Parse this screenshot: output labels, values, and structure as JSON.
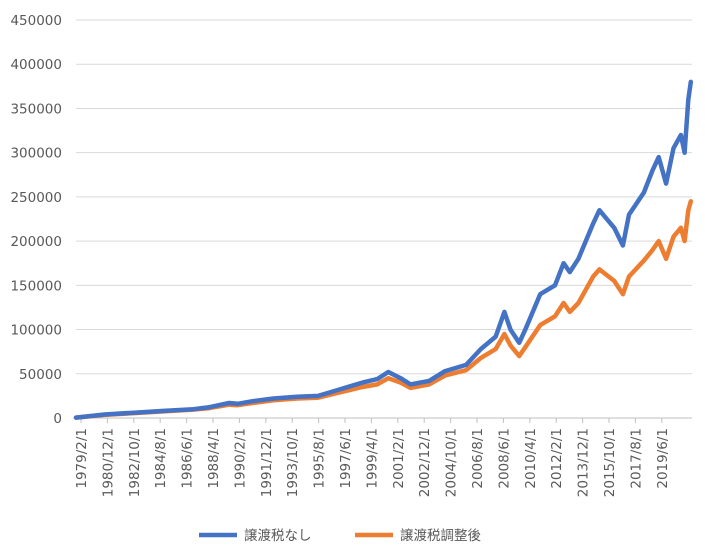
{
  "chart_data": {
    "type": "line",
    "title": "",
    "xlabel": "",
    "ylabel": "",
    "ylim": [
      0,
      450000
    ],
    "yticks": [
      0,
      50000,
      100000,
      150000,
      200000,
      250000,
      300000,
      350000,
      400000,
      450000
    ],
    "ytick_labels": [
      "0",
      "50000",
      "100000",
      "150000",
      "200000",
      "250000",
      "300000",
      "350000",
      "400000",
      "450000"
    ],
    "xlim": [
      "1979-02",
      "2020-09"
    ],
    "xtick_labels": [
      "1979/2/1",
      "1980/12/1",
      "1982/10/1",
      "1984/8/1",
      "1986/6/1",
      "1988/4/1",
      "1990/2/1",
      "1991/12/1",
      "1993/10/1",
      "1995/8/1",
      "1997/6/1",
      "1999/4/1",
      "2001/2/1",
      "2002/12/1",
      "2004/10/1",
      "2006/8/1",
      "2008/6/1",
      "2010/4/1",
      "2012/2/1",
      "2013/12/1",
      "2015/10/1",
      "2017/8/1",
      "2019/6/1"
    ],
    "grid": {
      "horizontal": true,
      "vertical": false
    },
    "legend": "bottom",
    "x": [
      "1979-02",
      "1981-01",
      "1983-01",
      "1985-01",
      "1987-01",
      "1988-01",
      "1989-06",
      "1990-01",
      "1991-01",
      "1992-06",
      "1994-01",
      "1995-06",
      "1996-06",
      "1997-06",
      "1998-06",
      "1999-06",
      "2000-03",
      "2001-01",
      "2001-09",
      "2002-12",
      "2004-01",
      "2005-06",
      "2006-06",
      "2007-06",
      "2008-01",
      "2008-06",
      "2009-01",
      "2009-06",
      "2010-06",
      "2011-06",
      "2012-01",
      "2012-06",
      "2013-01",
      "2014-01",
      "2014-06",
      "2015-06",
      "2016-01",
      "2016-06",
      "2017-06",
      "2018-01",
      "2018-06",
      "2018-12",
      "2019-06",
      "2019-12",
      "2020-03",
      "2020-06",
      "2020-08"
    ],
    "series": [
      {
        "name": "譲渡税なし",
        "color": "#4472C4",
        "values": [
          500,
          4000,
          6000,
          8000,
          10000,
          12000,
          17000,
          16000,
          19000,
          22000,
          24000,
          25000,
          30000,
          35000,
          40000,
          44000,
          52000,
          45000,
          38000,
          42000,
          53000,
          60000,
          78000,
          92000,
          120000,
          100000,
          85000,
          100000,
          140000,
          150000,
          175000,
          165000,
          180000,
          220000,
          235000,
          215000,
          195000,
          230000,
          255000,
          280000,
          295000,
          265000,
          305000,
          320000,
          300000,
          360000,
          380000
        ]
      },
      {
        "name": "譲渡税調整後",
        "color": "#ED7D31",
        "values": [
          500,
          3500,
          5500,
          7500,
          9500,
          11000,
          15000,
          14500,
          17000,
          20000,
          22000,
          23000,
          27000,
          31000,
          35000,
          38000,
          45000,
          40000,
          34000,
          38000,
          48000,
          54000,
          68000,
          78000,
          95000,
          82000,
          70000,
          80000,
          105000,
          115000,
          130000,
          120000,
          130000,
          160000,
          168000,
          155000,
          140000,
          160000,
          178000,
          190000,
          200000,
          180000,
          205000,
          215000,
          200000,
          235000,
          245000
        ]
      }
    ]
  }
}
